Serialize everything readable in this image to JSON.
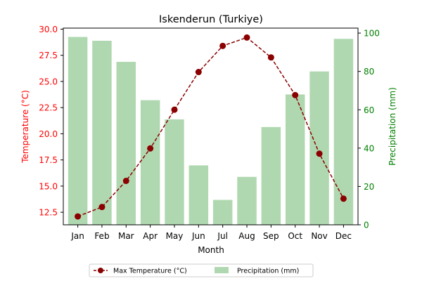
{
  "chart_data": {
    "type": "bar",
    "title": "Iskenderun (Turkiye)",
    "xlabel": "Month",
    "categories": [
      "Jan",
      "Feb",
      "Mar",
      "Apr",
      "May",
      "Jun",
      "Jul",
      "Aug",
      "Sep",
      "Oct",
      "Nov",
      "Dec"
    ],
    "series": [
      {
        "name": "Max Temperature (°C)",
        "type": "line",
        "axis": "left",
        "color": "#8b0000",
        "values": [
          12.1,
          13.0,
          15.5,
          18.6,
          22.3,
          25.9,
          28.4,
          29.2,
          27.3,
          23.7,
          18.1,
          13.8
        ]
      },
      {
        "name": "Precipitation (mm)",
        "type": "bar",
        "axis": "right",
        "color": "#b0d8b0",
        "values": [
          98,
          96,
          85,
          65,
          55,
          31,
          13,
          25,
          51,
          68,
          80,
          97
        ]
      }
    ],
    "left_axis": {
      "label": "Temperature (°C)",
      "color": "#ff0000",
      "ylim": [
        11.3,
        30.1
      ],
      "ticks": [
        "12.5",
        "15.0",
        "17.5",
        "20.0",
        "22.5",
        "25.0",
        "27.5",
        "30.0"
      ],
      "tick_values": [
        12.5,
        15.0,
        17.5,
        20.0,
        22.5,
        25.0,
        27.5,
        30.0
      ]
    },
    "right_axis": {
      "label": "Precipitation (mm)",
      "color": "#008000",
      "ylim": [
        0,
        102.6
      ],
      "ticks": [
        "0",
        "20",
        "40",
        "60",
        "80",
        "100"
      ],
      "tick_values": [
        0,
        20,
        40,
        60,
        80,
        100
      ]
    },
    "legend_position": "bottom-center",
    "grid": false
  }
}
